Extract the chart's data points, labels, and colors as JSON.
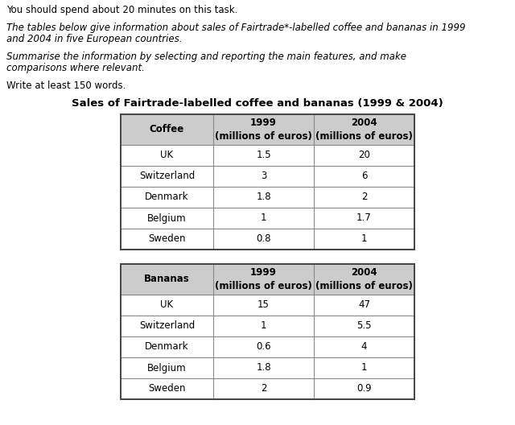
{
  "title_text": "Sales of Fairtrade-labelled coffee and bananas (1999 & 2004)",
  "line1": "You should spend about 20 minutes on this task.",
  "line2a": "The tables below give information about sales of Fairtrade*-labelled coffee and bananas in 1999",
  "line2b": "and 2004 in five European countries.",
  "line3a": "Summarise the information by selecting and reporting the main features, and make",
  "line3b": "comparisons where relevant.",
  "line4": "Write at least 150 words.",
  "coffee_header": [
    "Coffee",
    "1999\n(millions of euros)",
    "2004\n(millions of euros)"
  ],
  "coffee_rows": [
    [
      "UK",
      "1.5",
      "20"
    ],
    [
      "Switzerland",
      "3",
      "6"
    ],
    [
      "Denmark",
      "1.8",
      "2"
    ],
    [
      "Belgium",
      "1",
      "1.7"
    ],
    [
      "Sweden",
      "0.8",
      "1"
    ]
  ],
  "bananas_header": [
    "Bananas",
    "1999\n(millions of euros)",
    "2004\n(millions of euros)"
  ],
  "bananas_rows": [
    [
      "UK",
      "15",
      "47"
    ],
    [
      "Switzerland",
      "1",
      "5.5"
    ],
    [
      "Denmark",
      "0.6",
      "4"
    ],
    [
      "Belgium",
      "1.8",
      "1"
    ],
    [
      "Sweden",
      "2",
      "0.9"
    ]
  ],
  "header_bg_color": "#cccccc",
  "row_bg_color": "#ffffff",
  "border_color": "#444444",
  "inner_color": "#888888",
  "bg_color": "#ffffff",
  "text_color": "#000000"
}
